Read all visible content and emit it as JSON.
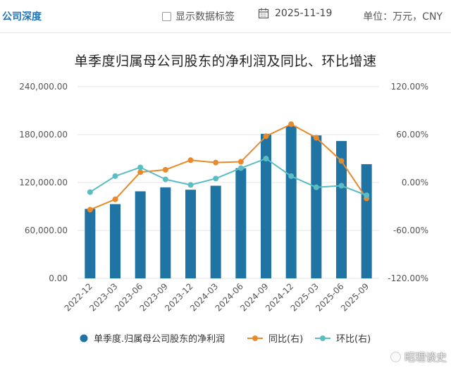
{
  "header": {
    "brand": "公司深度",
    "checkbox_label": "显示数据标签",
    "checkbox_checked": false,
    "date": "2025-11-19",
    "unit_label": "单位：万元，CNY",
    "calendar_icon": "calendar-icon"
  },
  "watermark": "昭理谈史",
  "colors": {
    "bar": "#1f74a3",
    "yoy": "#e8892b",
    "qoq": "#5bbdc4",
    "grid": "#e4e4e4",
    "brand": "#1e74b8"
  },
  "chart_data": {
    "type": "bar",
    "title": "单季度归属母公司股东的净利润及同比、环比增速",
    "categories": [
      "2022-12",
      "2023-03",
      "2023-06",
      "2023-09",
      "2023-12",
      "2024-03",
      "2024-06",
      "2024-09",
      "2024-12",
      "2025-03",
      "2025-06",
      "2025-09"
    ],
    "y_left": {
      "min": 0,
      "max": 240000,
      "ticks": [
        0,
        60000,
        120000,
        180000,
        240000
      ],
      "tick_labels": [
        "0.00",
        "60,000.00",
        "120,000.00",
        "180,000.00",
        "240,000.00"
      ]
    },
    "y_right": {
      "min": -120,
      "max": 120,
      "ticks": [
        -120,
        -60,
        0,
        60,
        120
      ],
      "tick_labels": [
        "-120.00%",
        "-60.00%",
        "0.00%",
        "60.00%",
        "120.00%"
      ]
    },
    "series": [
      {
        "name": "单季度.归属母公司股东的净利润",
        "kind": "bar",
        "axis": "left",
        "values": [
          87000,
          93000,
          109000,
          114000,
          111000,
          116000,
          138000,
          181000,
          191000,
          179000,
          172000,
          143000
        ]
      },
      {
        "name": "同比(右)",
        "kind": "line",
        "axis": "right",
        "values": [
          -34,
          -21,
          13,
          16,
          28,
          25,
          26,
          58,
          73,
          56,
          27,
          -20
        ]
      },
      {
        "name": "环比(右)",
        "kind": "line",
        "axis": "right",
        "values": [
          -12,
          8,
          19,
          4,
          -3,
          5,
          18,
          30,
          8,
          -6,
          -4,
          -16
        ]
      }
    ],
    "legend": {
      "position": "bottom",
      "items": [
        "单季度.归属母公司股东的净利润",
        "同比(右)",
        "环比(右)"
      ]
    },
    "grid": true
  }
}
